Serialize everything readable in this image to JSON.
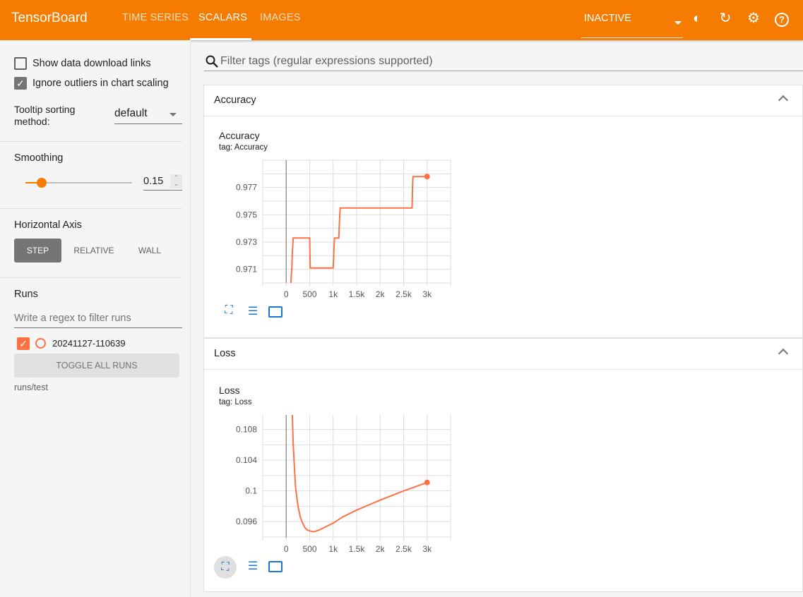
{
  "header": {
    "brand": "TensorBoard",
    "tabs": [
      {
        "label": "TIME SERIES"
      },
      {
        "label": "SCALARS",
        "active": true
      },
      {
        "label": "IMAGES"
      }
    ],
    "run_state": "INACTIVE",
    "icons": [
      "dark-mode-icon",
      "refresh-icon",
      "settings-icon",
      "help-icon"
    ],
    "color": "#f57c00"
  },
  "sidebar": {
    "show_download": {
      "label": "Show data download links",
      "checked": false
    },
    "ignore_outliers": {
      "label": "Ignore outliers in chart scaling",
      "checked": true
    },
    "tooltip": {
      "label": "Tooltip sorting method:",
      "value": "default"
    },
    "smoothing": {
      "label": "Smoothing",
      "value": "0.15",
      "fraction": 0.15
    },
    "horizontal_axis": {
      "label": "Horizontal Axis",
      "options": [
        "STEP",
        "RELATIVE",
        "WALL"
      ],
      "selected": "STEP"
    },
    "runs": {
      "label": "Runs",
      "filter_placeholder": "Write a regex to filter runs",
      "items": [
        {
          "name": "20241127-110639",
          "checked": true,
          "color": "#ff7043"
        }
      ],
      "toggle_all": "TOGGLE ALL RUNS",
      "dir": "runs/test"
    }
  },
  "main": {
    "filter_placeholder": "Filter tags (regular expressions supported)",
    "cards": [
      {
        "header": "Accuracy",
        "title": "Accuracy",
        "tag": "tag: Accuracy"
      },
      {
        "header": "Loss",
        "title": "Loss",
        "tag": "tag: Loss"
      }
    ]
  },
  "chart_data": [
    {
      "type": "line",
      "title": "Accuracy",
      "subtitle": "tag: Accuracy",
      "xlim": [
        -500,
        3500
      ],
      "ylim": [
        0.97,
        0.979
      ],
      "xticks": [
        0,
        500,
        1000,
        1500,
        2000,
        2500,
        3000
      ],
      "xtick_labels": [
        "0",
        "500",
        "1k",
        "1.5k",
        "2k",
        "2.5k",
        "3k"
      ],
      "yticks": [
        0.971,
        0.973,
        0.975,
        0.977
      ],
      "ytick_labels": [
        "0.971",
        "0.973",
        "0.975",
        "0.977"
      ],
      "grid": true,
      "color": "#ff7043",
      "x": [
        100,
        110,
        120,
        130,
        150,
        500,
        510,
        1000,
        1020,
        1030,
        1120,
        1140,
        1150,
        2680,
        2690,
        2700,
        3000
      ],
      "y": [
        0.97,
        0.9707,
        0.971,
        0.9722,
        0.9733,
        0.9733,
        0.9711,
        0.9711,
        0.9728,
        0.9733,
        0.9733,
        0.975,
        0.9755,
        0.9755,
        0.977,
        0.9778,
        0.9778
      ]
    },
    {
      "type": "line",
      "title": "Loss",
      "subtitle": "tag: Loss",
      "xlim": [
        -500,
        3500
      ],
      "ylim": [
        0.0939,
        0.1099
      ],
      "xticks": [
        0,
        500,
        1000,
        1500,
        2000,
        2500,
        3000
      ],
      "xtick_labels": [
        "0",
        "500",
        "1k",
        "1.5k",
        "2k",
        "2.5k",
        "3k"
      ],
      "yticks": [
        0.096,
        0.1,
        0.104,
        0.108
      ],
      "ytick_labels": [
        "0.096",
        "0.1",
        "0.104",
        "0.108"
      ],
      "grid": true,
      "color": "#ff7043",
      "x": [
        130,
        150,
        180,
        200,
        250,
        300,
        350,
        400,
        450,
        500,
        550,
        600,
        700,
        800,
        1000,
        1200,
        1500,
        2000,
        2500,
        3000
      ],
      "y": [
        0.1099,
        0.106,
        0.1025,
        0.1005,
        0.098,
        0.0966,
        0.0958,
        0.0952,
        0.0949,
        0.0948,
        0.0947,
        0.0947,
        0.0949,
        0.0952,
        0.0958,
        0.0966,
        0.0975,
        0.0988,
        0.1,
        0.1011
      ]
    }
  ]
}
